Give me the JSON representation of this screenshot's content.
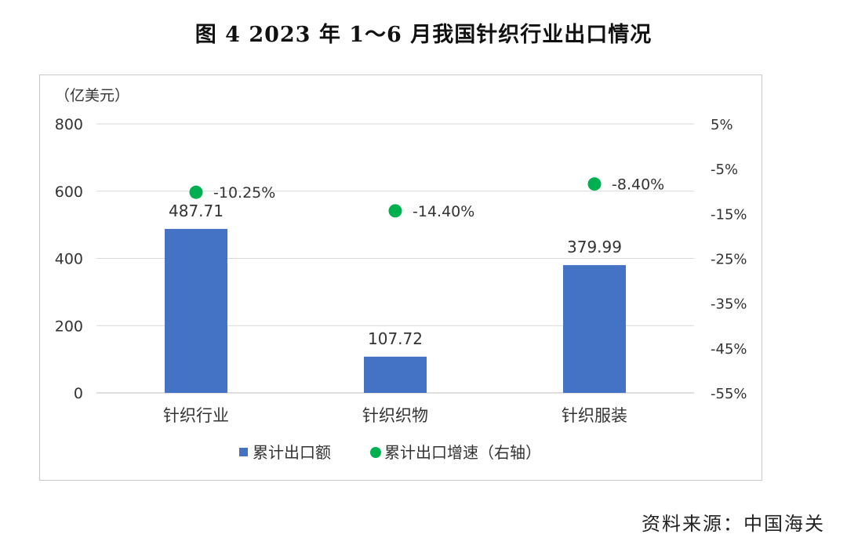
{
  "title": "图 4  2023 年 1～6 月我国针织行业出口情况",
  "source": "资料来源：中国海关",
  "chart_data": {
    "type": "bar",
    "unit_label": "（亿美元）",
    "categories": [
      "针织行业",
      "针织织物",
      "针织服装"
    ],
    "series": [
      {
        "name": "累计出口额",
        "type": "bar",
        "axis": "left",
        "color": "#4472C4",
        "values": [
          487.71,
          107.72,
          379.99
        ],
        "labels": [
          "487.71",
          "107.72",
          "379.99"
        ]
      },
      {
        "name": "累计出口增速（右轴）",
        "type": "scatter",
        "axis": "right",
        "color": "#00B050",
        "values": [
          -10.25,
          -14.4,
          -8.4
        ],
        "labels": [
          "-10.25%",
          "-14.40%",
          "-8.40%"
        ]
      }
    ],
    "left_axis": {
      "min": 0,
      "max": 800,
      "ticks": [
        "0",
        "200",
        "400",
        "600",
        "800"
      ]
    },
    "right_axis": {
      "min": -55,
      "max": 5,
      "ticks": [
        "-55%",
        "-45%",
        "-35%",
        "-25%",
        "-15%",
        "-5%",
        "5%"
      ]
    },
    "grid": true,
    "legend_position": "bottom"
  }
}
